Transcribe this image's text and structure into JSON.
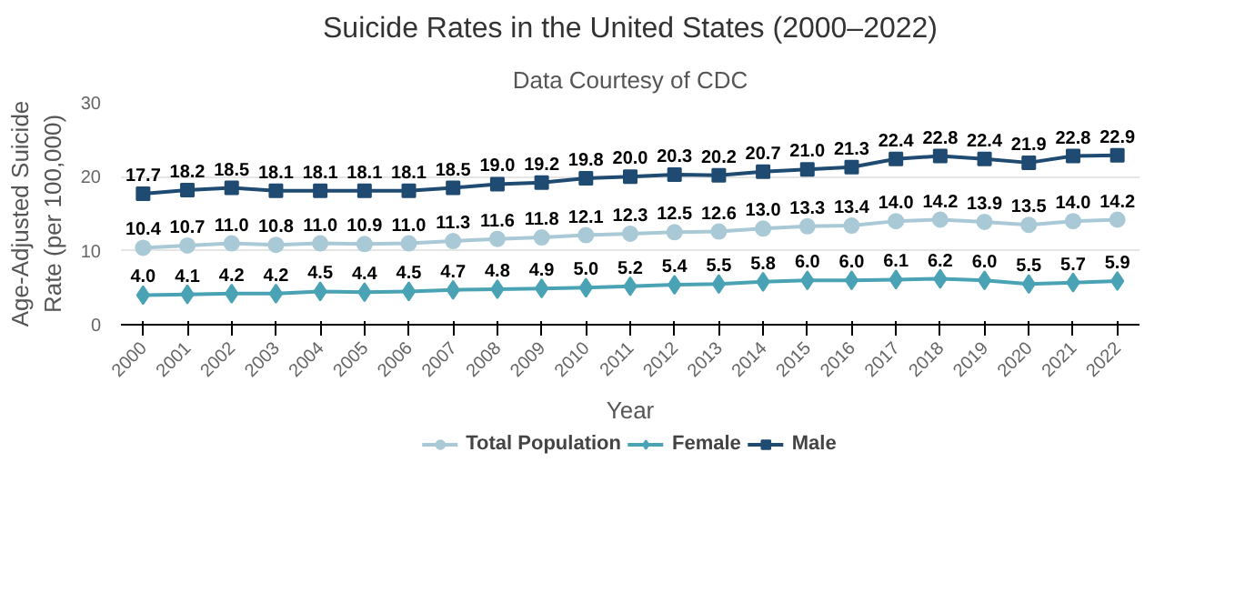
{
  "chart_data": {
    "type": "line",
    "title": "Suicide Rates in the United States (2000–2022)",
    "subtitle": "Data Courtesy of CDC",
    "xlabel": "Year",
    "ylabel": "Age-Adjusted Suicide Rate (per 100,000)",
    "categories": [
      "2000",
      "2001",
      "2002",
      "2003",
      "2004",
      "2005",
      "2006",
      "2007",
      "2008",
      "2009",
      "2010",
      "2011",
      "2012",
      "2013",
      "2014",
      "2015",
      "2016",
      "2017",
      "2018",
      "2019",
      "2020",
      "2021",
      "2022"
    ],
    "series": [
      {
        "name": "Total Population",
        "color": "#a9c9d6",
        "marker": "circle",
        "values": [
          10.4,
          10.7,
          11.0,
          10.8,
          11.0,
          10.9,
          11.0,
          11.3,
          11.6,
          11.8,
          12.1,
          12.3,
          12.5,
          12.6,
          13.0,
          13.3,
          13.4,
          14.0,
          14.2,
          13.9,
          13.5,
          14.0,
          14.2
        ],
        "value_labels": [
          "10.4",
          "10.7",
          "11.0",
          "10.8",
          "11.0",
          "10.9",
          "11.0",
          "11.3",
          "11.6",
          "11.8",
          "12.1",
          "12.3",
          "12.5",
          "12.6",
          "13.0",
          "13.3",
          "13.4",
          "14.0",
          "14.2",
          "13.9",
          "13.5",
          "14.0",
          "14.2"
        ]
      },
      {
        "name": "Female",
        "color": "#4aa3b5",
        "marker": "diamond",
        "values": [
          4.0,
          4.1,
          4.2,
          4.2,
          4.5,
          4.4,
          4.5,
          4.7,
          4.8,
          4.9,
          5.0,
          5.2,
          5.4,
          5.5,
          5.8,
          6.0,
          6.0,
          6.1,
          6.2,
          6.0,
          5.5,
          5.7,
          5.9
        ],
        "value_labels": [
          "4.0",
          "4.1",
          "4.2",
          "4.2",
          "4.5",
          "4.4",
          "4.5",
          "4.7",
          "4.8",
          "4.9",
          "5.0",
          "5.2",
          "5.4",
          "5.5",
          "5.8",
          "6.0",
          "6.0",
          "6.1",
          "6.2",
          "6.0",
          "5.5",
          "5.7",
          "5.9"
        ]
      },
      {
        "name": "Male",
        "color": "#1f4a72",
        "marker": "square",
        "values": [
          17.7,
          18.2,
          18.5,
          18.1,
          18.1,
          18.1,
          18.1,
          18.5,
          19.0,
          19.2,
          19.8,
          20.0,
          20.3,
          20.2,
          20.7,
          21.0,
          21.3,
          22.4,
          22.8,
          22.4,
          21.9,
          22.8,
          22.9
        ],
        "value_labels": [
          "17.7",
          "18.2",
          "18.5",
          "18.1",
          "18.1",
          "18.1",
          "18.1",
          "18.5",
          "19.0",
          "19.2",
          "19.8",
          "20.0",
          "20.3",
          "20.2",
          "20.7",
          "21.0",
          "21.3",
          "22.4",
          "22.8",
          "22.4",
          "21.9",
          "22.8",
          "22.9"
        ]
      }
    ],
    "ylim": [
      0,
      30
    ],
    "yticks": [
      0,
      10,
      20,
      30
    ],
    "grid": "y",
    "legend": "bottom",
    "line_style": "solid"
  }
}
